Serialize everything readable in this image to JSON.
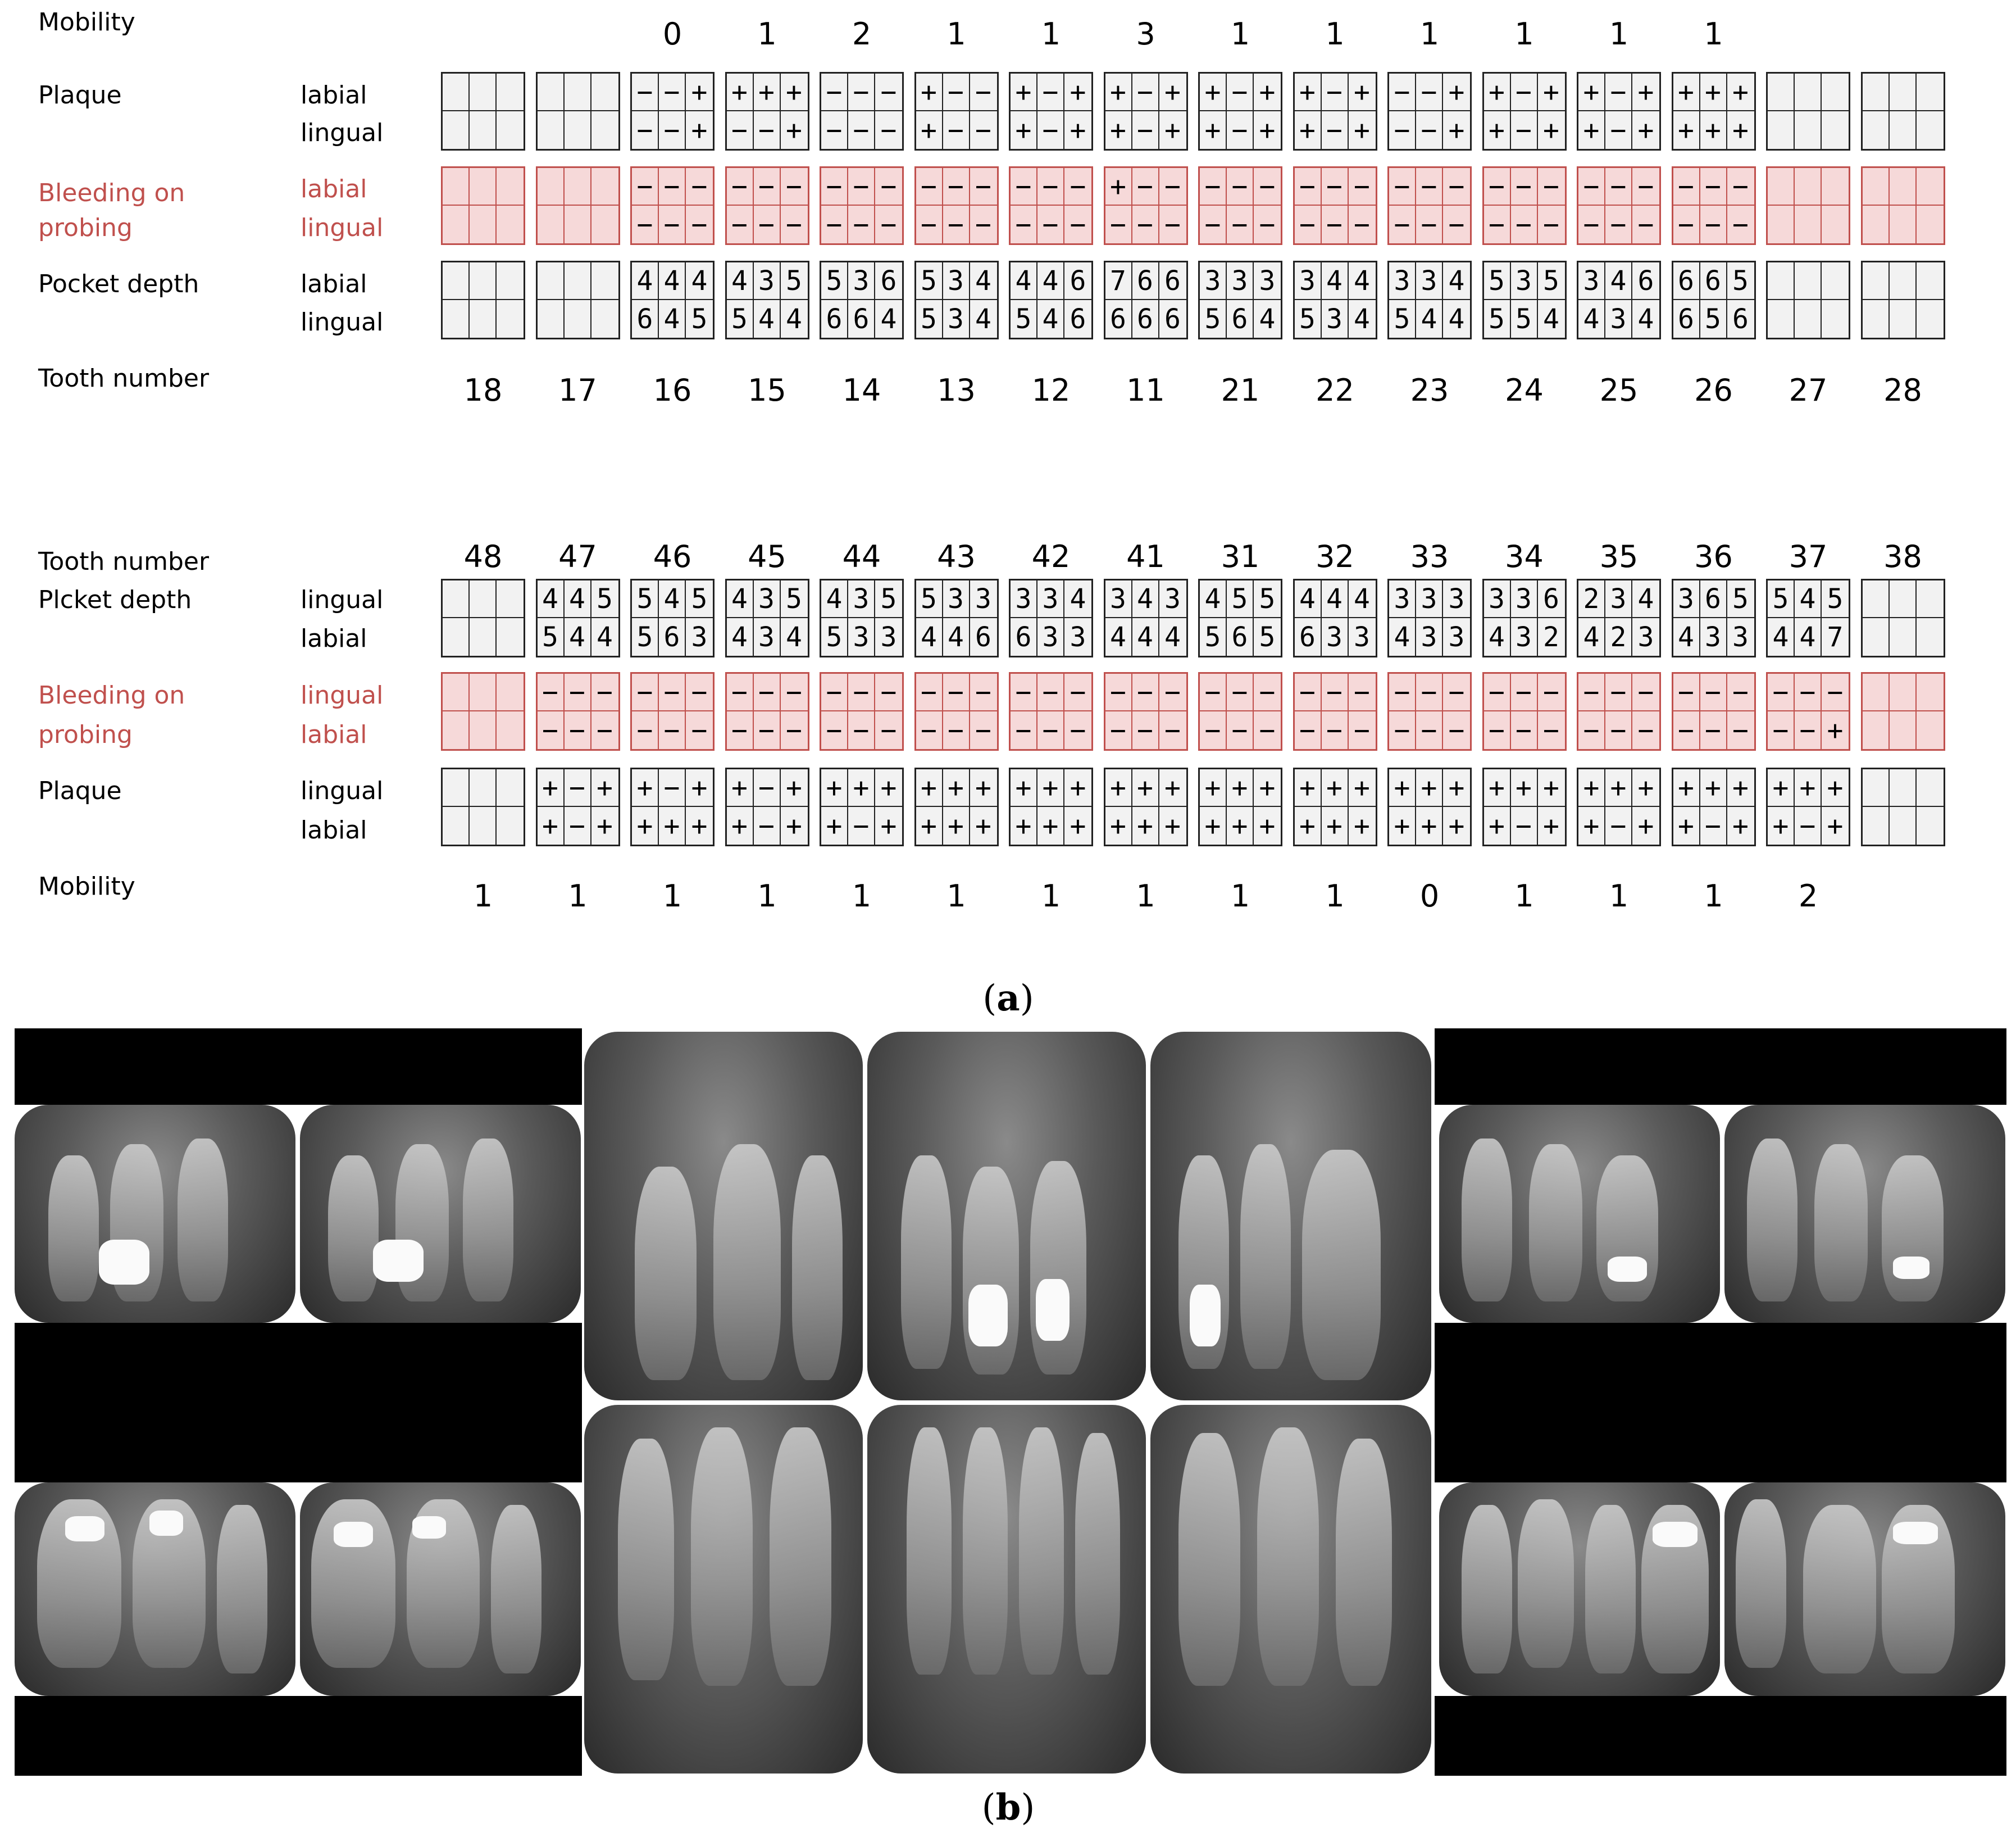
{
  "panel_a": {
    "label": "a",
    "upper": {
      "mobility_label": "Mobility",
      "plaque_label": "Plaque",
      "bleeding_label_1": "Bleeding on",
      "bleeding_label_2": "probing",
      "pocket_label": "Pocket depth",
      "tooth_number_label": "Tooth number",
      "row1_label": "labial",
      "row2_label": "lingual",
      "teeth": [
        {
          "number": "18",
          "mobility": "",
          "plaque": [
            "",
            "",
            "",
            "",
            "",
            ""
          ],
          "bop": [
            "",
            "",
            "",
            "",
            "",
            ""
          ],
          "pocket": [
            "",
            "",
            "",
            "",
            "",
            ""
          ]
        },
        {
          "number": "17",
          "mobility": "",
          "plaque": [
            "",
            "",
            "",
            "",
            "",
            ""
          ],
          "bop": [
            "",
            "",
            "",
            "",
            "",
            ""
          ],
          "pocket": [
            "",
            "",
            "",
            "",
            "",
            ""
          ]
        },
        {
          "number": "16",
          "mobility": "0",
          "plaque": [
            "−",
            "−",
            "+",
            "−",
            "−",
            "+"
          ],
          "bop": [
            "−",
            "−",
            "−",
            "−",
            "−",
            "−"
          ],
          "pocket": [
            "4",
            "4",
            "4",
            "6",
            "4",
            "5"
          ]
        },
        {
          "number": "15",
          "mobility": "1",
          "plaque": [
            "+",
            "+",
            "+",
            "−",
            "−",
            "+"
          ],
          "bop": [
            "−",
            "−",
            "−",
            "−",
            "−",
            "−"
          ],
          "pocket": [
            "4",
            "3",
            "5",
            "5",
            "4",
            "4"
          ]
        },
        {
          "number": "14",
          "mobility": "2",
          "plaque": [
            "−",
            "−",
            "−",
            "−",
            "−",
            "−"
          ],
          "bop": [
            "−",
            "−",
            "−",
            "−",
            "−",
            "−"
          ],
          "pocket": [
            "5",
            "3",
            "6",
            "6",
            "6",
            "4"
          ]
        },
        {
          "number": "13",
          "mobility": "1",
          "plaque": [
            "+",
            "−",
            "−",
            "+",
            "−",
            "−"
          ],
          "bop": [
            "−",
            "−",
            "−",
            "−",
            "−",
            "−"
          ],
          "pocket": [
            "5",
            "3",
            "4",
            "5",
            "3",
            "4"
          ]
        },
        {
          "number": "12",
          "mobility": "1",
          "plaque": [
            "+",
            "−",
            "+",
            "+",
            "−",
            "+"
          ],
          "bop": [
            "−",
            "−",
            "−",
            "−",
            "−",
            "−"
          ],
          "pocket": [
            "4",
            "4",
            "6",
            "5",
            "4",
            "6"
          ]
        },
        {
          "number": "11",
          "mobility": "3",
          "plaque": [
            "+",
            "−",
            "+",
            "+",
            "−",
            "+"
          ],
          "bop": [
            "+",
            "−",
            "−",
            "−",
            "−",
            "−"
          ],
          "pocket": [
            "7",
            "6",
            "6",
            "6",
            "6",
            "6"
          ]
        },
        {
          "number": "21",
          "mobility": "1",
          "plaque": [
            "+",
            "−",
            "+",
            "+",
            "−",
            "+"
          ],
          "bop": [
            "−",
            "−",
            "−",
            "−",
            "−",
            "−"
          ],
          "pocket": [
            "3",
            "3",
            "3",
            "5",
            "6",
            "4"
          ]
        },
        {
          "number": "22",
          "mobility": "1",
          "plaque": [
            "+",
            "−",
            "+",
            "+",
            "−",
            "+"
          ],
          "bop": [
            "−",
            "−",
            "−",
            "−",
            "−",
            "−"
          ],
          "pocket": [
            "3",
            "4",
            "4",
            "5",
            "3",
            "4"
          ]
        },
        {
          "number": "23",
          "mobility": "1",
          "plaque": [
            "−",
            "−",
            "+",
            "−",
            "−",
            "+"
          ],
          "bop": [
            "−",
            "−",
            "−",
            "−",
            "−",
            "−"
          ],
          "pocket": [
            "3",
            "3",
            "4",
            "5",
            "4",
            "4"
          ]
        },
        {
          "number": "24",
          "mobility": "1",
          "plaque": [
            "+",
            "−",
            "+",
            "+",
            "−",
            "+"
          ],
          "bop": [
            "−",
            "−",
            "−",
            "−",
            "−",
            "−"
          ],
          "pocket": [
            "5",
            "3",
            "5",
            "5",
            "5",
            "4"
          ]
        },
        {
          "number": "25",
          "mobility": "1",
          "plaque": [
            "+",
            "−",
            "+",
            "+",
            "−",
            "+"
          ],
          "bop": [
            "−",
            "−",
            "−",
            "−",
            "−",
            "−"
          ],
          "pocket": [
            "3",
            "4",
            "6",
            "4",
            "3",
            "4"
          ]
        },
        {
          "number": "26",
          "mobility": "1",
          "plaque": [
            "+",
            "+",
            "+",
            "+",
            "+",
            "+"
          ],
          "bop": [
            "−",
            "−",
            "−",
            "−",
            "−",
            "−"
          ],
          "pocket": [
            "6",
            "6",
            "5",
            "6",
            "5",
            "6"
          ]
        },
        {
          "number": "27",
          "mobility": "",
          "plaque": [
            "",
            "",
            "",
            "",
            "",
            ""
          ],
          "bop": [
            "",
            "",
            "",
            "",
            "",
            ""
          ],
          "pocket": [
            "",
            "",
            "",
            "",
            "",
            ""
          ]
        },
        {
          "number": "28",
          "mobility": "",
          "plaque": [
            "",
            "",
            "",
            "",
            "",
            ""
          ],
          "bop": [
            "",
            "",
            "",
            "",
            "",
            ""
          ],
          "pocket": [
            "",
            "",
            "",
            "",
            "",
            ""
          ]
        }
      ]
    },
    "lower": {
      "tooth_number_label": "Tooth number",
      "pocket_label": "Plcket depth",
      "bleeding_label_1": "Bleeding on",
      "bleeding_label_2": "probing",
      "plaque_label": "Plaque",
      "mobility_label": "Mobility",
      "row1_label": "lingual",
      "row2_label": "labial",
      "teeth": [
        {
          "number": "48",
          "mobility": "1",
          "plaque": [
            "",
            "",
            "",
            "",
            "",
            ""
          ],
          "bop": [
            "",
            "",
            "",
            "",
            "",
            ""
          ],
          "pocket": [
            "",
            "",
            "",
            "",
            "",
            ""
          ]
        },
        {
          "number": "47",
          "mobility": "1",
          "plaque": [
            "+",
            "−",
            "+",
            "+",
            "−",
            "+"
          ],
          "bop": [
            "−",
            "−",
            "−",
            "−",
            "−",
            "−"
          ],
          "pocket": [
            "4",
            "4",
            "5",
            "5",
            "4",
            "4"
          ]
        },
        {
          "number": "46",
          "mobility": "1",
          "plaque": [
            "+",
            "−",
            "+",
            "+",
            "+",
            "+"
          ],
          "bop": [
            "−",
            "−",
            "−",
            "−",
            "−",
            "−"
          ],
          "pocket": [
            "5",
            "4",
            "5",
            "5",
            "6",
            "3"
          ]
        },
        {
          "number": "45",
          "mobility": "1",
          "plaque": [
            "+",
            "−",
            "+",
            "+",
            "−",
            "+"
          ],
          "bop": [
            "−",
            "−",
            "−",
            "−",
            "−",
            "−"
          ],
          "pocket": [
            "4",
            "3",
            "5",
            "4",
            "3",
            "4"
          ]
        },
        {
          "number": "44",
          "mobility": "1",
          "plaque": [
            "+",
            "+",
            "+",
            "+",
            "−",
            "+"
          ],
          "bop": [
            "−",
            "−",
            "−",
            "−",
            "−",
            "−"
          ],
          "pocket": [
            "4",
            "3",
            "5",
            "5",
            "3",
            "3"
          ]
        },
        {
          "number": "43",
          "mobility": "1",
          "plaque": [
            "+",
            "+",
            "+",
            "+",
            "+",
            "+"
          ],
          "bop": [
            "−",
            "−",
            "−",
            "−",
            "−",
            "−"
          ],
          "pocket": [
            "5",
            "3",
            "3",
            "4",
            "4",
            "6"
          ]
        },
        {
          "number": "42",
          "mobility": "1",
          "plaque": [
            "+",
            "+",
            "+",
            "+",
            "+",
            "+"
          ],
          "bop": [
            "−",
            "−",
            "−",
            "−",
            "−",
            "−"
          ],
          "pocket": [
            "3",
            "3",
            "4",
            "6",
            "3",
            "3"
          ]
        },
        {
          "number": "41",
          "mobility": "1",
          "plaque": [
            "+",
            "+",
            "+",
            "+",
            "+",
            "+"
          ],
          "bop": [
            "−",
            "−",
            "−",
            "−",
            "−",
            "−"
          ],
          "pocket": [
            "3",
            "4",
            "3",
            "4",
            "4",
            "4"
          ]
        },
        {
          "number": "31",
          "mobility": "1",
          "plaque": [
            "+",
            "+",
            "+",
            "+",
            "+",
            "+"
          ],
          "bop": [
            "−",
            "−",
            "−",
            "−",
            "−",
            "−"
          ],
          "pocket": [
            "4",
            "5",
            "5",
            "5",
            "6",
            "5"
          ]
        },
        {
          "number": "32",
          "mobility": "1",
          "plaque": [
            "+",
            "+",
            "+",
            "+",
            "+",
            "+"
          ],
          "bop": [
            "−",
            "−",
            "−",
            "−",
            "−",
            "−"
          ],
          "pocket": [
            "4",
            "4",
            "4",
            "6",
            "3",
            "3"
          ]
        },
        {
          "number": "33",
          "mobility": "0",
          "plaque": [
            "+",
            "+",
            "+",
            "+",
            "+",
            "+"
          ],
          "bop": [
            "−",
            "−",
            "−",
            "−",
            "−",
            "−"
          ],
          "pocket": [
            "3",
            "3",
            "3",
            "4",
            "3",
            "3"
          ]
        },
        {
          "number": "34",
          "mobility": "1",
          "plaque": [
            "+",
            "+",
            "+",
            "+",
            "−",
            "+"
          ],
          "bop": [
            "−",
            "−",
            "−",
            "−",
            "−",
            "−"
          ],
          "pocket": [
            "3",
            "3",
            "6",
            "4",
            "3",
            "2"
          ]
        },
        {
          "number": "35",
          "mobility": "1",
          "plaque": [
            "+",
            "+",
            "+",
            "+",
            "−",
            "+"
          ],
          "bop": [
            "−",
            "−",
            "−",
            "−",
            "−",
            "−"
          ],
          "pocket": [
            "2",
            "3",
            "4",
            "4",
            "2",
            "3"
          ]
        },
        {
          "number": "36",
          "mobility": "1",
          "plaque": [
            "+",
            "+",
            "+",
            "+",
            "−",
            "+"
          ],
          "bop": [
            "−",
            "−",
            "−",
            "−",
            "−",
            "−"
          ],
          "pocket": [
            "3",
            "6",
            "5",
            "4",
            "3",
            "3"
          ]
        },
        {
          "number": "37",
          "mobility": "2",
          "plaque": [
            "+",
            "+",
            "+",
            "+",
            "−",
            "+"
          ],
          "bop": [
            "−",
            "−",
            "−",
            "−",
            "−",
            "+"
          ],
          "pocket": [
            "5",
            "4",
            "5",
            "4",
            "4",
            "7"
          ]
        },
        {
          "number": "38",
          "mobility": "",
          "plaque": [
            "",
            "",
            "",
            "",
            "",
            ""
          ],
          "bop": [
            "",
            "",
            "",
            "",
            "",
            ""
          ],
          "pocket": [
            "",
            "",
            "",
            "",
            "",
            ""
          ]
        }
      ]
    }
  },
  "panel_b": {
    "label": "b"
  }
}
